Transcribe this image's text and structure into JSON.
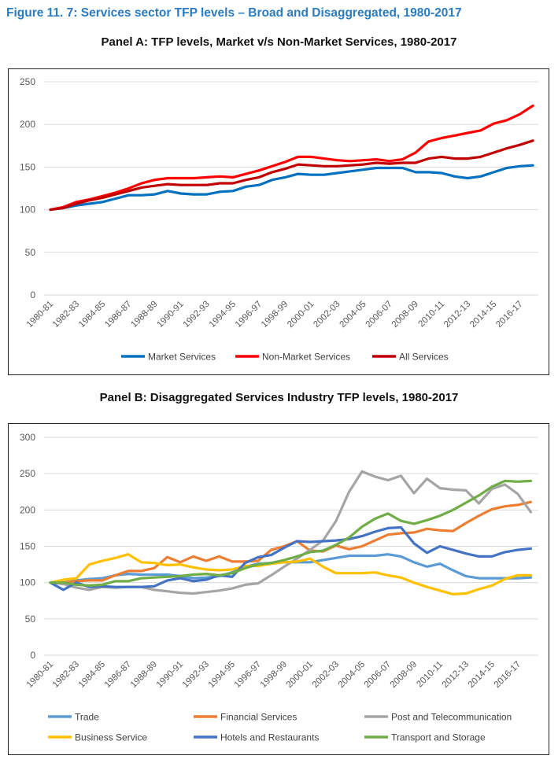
{
  "figure_title": "Figure 11. 7: Services sector TFP levels – Broad and Disaggregated, 1980-2017",
  "chart_data": [
    {
      "type": "line",
      "title": "Panel A: TFP levels, Market v/s Non-Market Services, 1980-2017",
      "xlabel": "",
      "ylabel": "",
      "ylim": [
        0,
        250
      ],
      "yticks": [
        "0",
        "50",
        "100",
        "150",
        "200",
        "250"
      ],
      "xticks": [
        "1980-81",
        "1982-83",
        "1984-85",
        "1986-87",
        "1988-89",
        "1990-91",
        "1992-93",
        "1994-95",
        "1996-97",
        "1998-99",
        "2000-01",
        "2002-03",
        "2004-05",
        "2006-07",
        "2008-09",
        "2010-11",
        "2012-13",
        "2014-15",
        "2016-17"
      ],
      "grid": "horizontal",
      "legend_position": "bottom",
      "series": [
        {
          "name": "Market Services",
          "color": "#0070C0",
          "values": [
            100,
            102,
            105,
            107,
            109,
            113,
            117,
            117,
            118,
            122,
            119,
            118,
            118,
            121,
            122,
            127,
            129,
            135,
            138,
            142,
            141,
            141,
            143,
            145,
            147,
            149,
            149,
            149,
            144,
            144,
            143,
            139,
            137,
            139,
            144,
            149,
            151,
            152
          ]
        },
        {
          "name": "Non-Market Services",
          "color": "#FF0000",
          "values": [
            100,
            103,
            109,
            112,
            116,
            120,
            125,
            131,
            135,
            137,
            137,
            137,
            138,
            139,
            138,
            142,
            146,
            151,
            156,
            162,
            162,
            160,
            158,
            157,
            158,
            159,
            157,
            159,
            167,
            180,
            184,
            187,
            190,
            193,
            201,
            205,
            212,
            222
          ]
        },
        {
          "name": "All Services",
          "color": "#C00000",
          "values": [
            100,
            102,
            107,
            111,
            114,
            118,
            122,
            126,
            128,
            130,
            129,
            129,
            129,
            131,
            131,
            135,
            138,
            144,
            148,
            153,
            152,
            151,
            151,
            152,
            153,
            155,
            154,
            155,
            155,
            160,
            162,
            160,
            160,
            162,
            167,
            172,
            176,
            181
          ]
        }
      ]
    },
    {
      "type": "line",
      "title": "Panel B: Disaggregated Services Industry TFP levels, 1980-2017",
      "xlabel": "",
      "ylabel": "",
      "ylim": [
        0,
        300
      ],
      "yticks": [
        "0",
        "50",
        "100",
        "150",
        "200",
        "250",
        "300"
      ],
      "xticks": [
        "1980-81",
        "1982-83",
        "1984-85",
        "1986-87",
        "1988-89",
        "1990-91",
        "1992-93",
        "1994-95",
        "1996-97",
        "1998-99",
        "2000-01",
        "2002-03",
        "2004-05",
        "2006-07",
        "2008-09",
        "2010-11",
        "2012-13",
        "2014-15",
        "2016-17"
      ],
      "grid": "horizontal",
      "legend_position": "bottom",
      "series": [
        {
          "name": "Trade",
          "color": "#5B9BD5",
          "values": [
            100,
            100,
            103,
            105,
            106,
            110,
            112,
            111,
            111,
            111,
            109,
            106,
            107,
            109,
            114,
            122,
            126,
            127,
            128,
            128,
            128,
            131,
            134,
            137,
            137,
            137,
            139,
            136,
            128,
            122,
            126,
            117,
            109,
            106,
            106,
            106,
            106,
            107
          ]
        },
        {
          "name": "Financial Services",
          "color": "#ED7D31",
          "values": [
            100,
            100,
            102,
            103,
            103,
            110,
            116,
            116,
            120,
            135,
            128,
            136,
            130,
            136,
            129,
            129,
            130,
            145,
            150,
            157,
            144,
            143,
            151,
            146,
            150,
            158,
            166,
            168,
            169,
            174,
            172,
            171,
            182,
            192,
            201,
            205,
            207,
            211
          ]
        },
        {
          "name": "Post and Telecommunication",
          "color": "#A5A5A5",
          "values": [
            100,
            98,
            93,
            90,
            94,
            93,
            94,
            94,
            90,
            88,
            86,
            85,
            87,
            89,
            92,
            97,
            99,
            110,
            122,
            133,
            145,
            158,
            185,
            225,
            253,
            246,
            241,
            247,
            223,
            243,
            230,
            228,
            227,
            209,
            229,
            235,
            222,
            197
          ]
        },
        {
          "name": "Business Service",
          "color": "#FFC000",
          "values": [
            100,
            104,
            106,
            125,
            130,
            134,
            139,
            128,
            127,
            124,
            125,
            121,
            118,
            117,
            118,
            123,
            123,
            126,
            128,
            129,
            133,
            122,
            113,
            113,
            113,
            114,
            110,
            107,
            100,
            94,
            89,
            84,
            85,
            91,
            96,
            105,
            110,
            110
          ]
        },
        {
          "name": "Hotels and Restaurants",
          "color": "#4472C4",
          "values": [
            100,
            90,
            100,
            94,
            95,
            94,
            94,
            94,
            95,
            103,
            106,
            102,
            104,
            110,
            108,
            127,
            135,
            138,
            148,
            157,
            156,
            157,
            158,
            160,
            164,
            170,
            175,
            176,
            154,
            141,
            150,
            145,
            140,
            136,
            136,
            142,
            145,
            147
          ]
        },
        {
          "name": "Transport and Storage",
          "color": "#70AD47",
          "values": [
            100,
            100,
            97,
            96,
            97,
            102,
            102,
            106,
            107,
            108,
            109,
            111,
            112,
            110,
            113,
            120,
            125,
            127,
            131,
            136,
            142,
            144,
            152,
            162,
            177,
            188,
            195,
            185,
            181,
            186,
            192,
            200,
            210,
            220,
            232,
            240,
            239,
            240
          ]
        }
      ]
    }
  ]
}
